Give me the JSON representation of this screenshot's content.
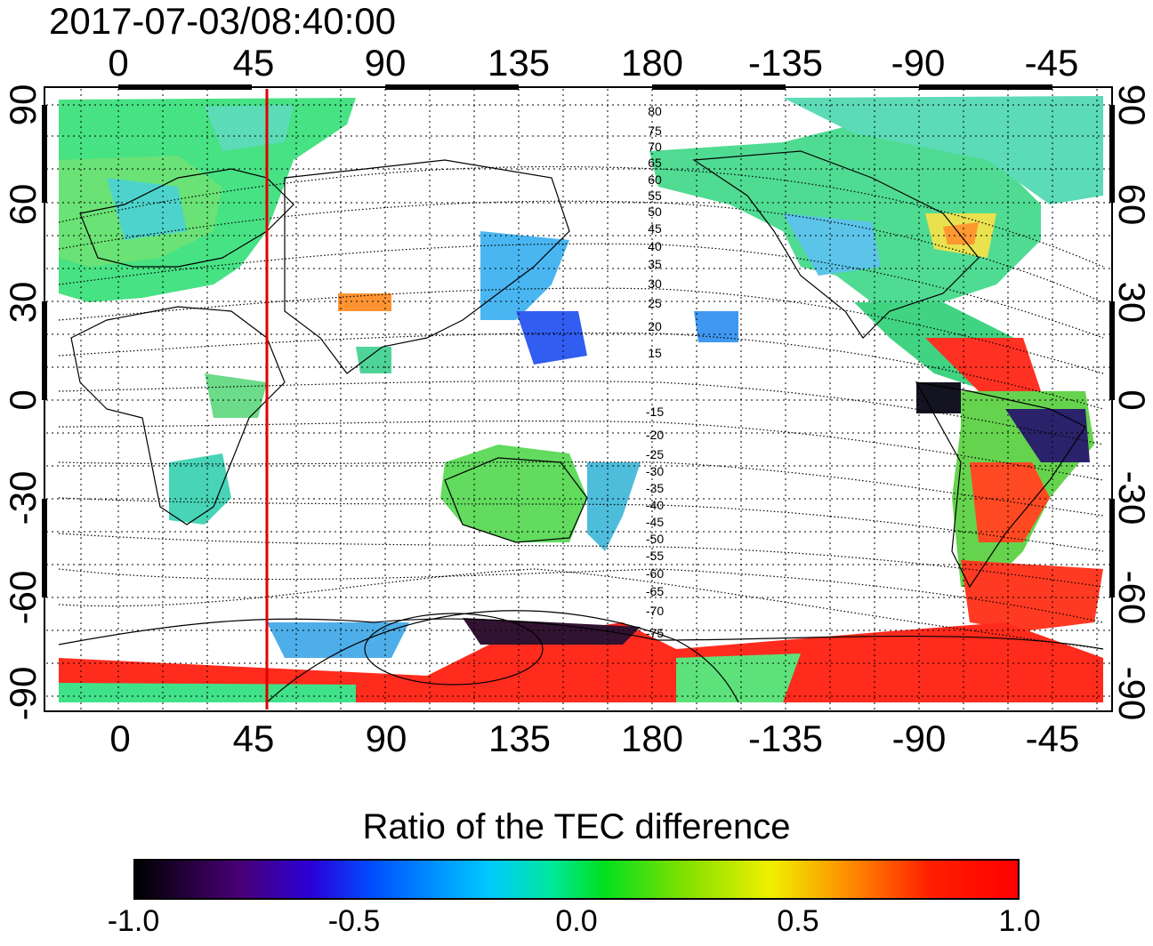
{
  "timestamp": "2017-07-03/08:40:00",
  "axes": {
    "lon_ticks": [
      "0",
      "45",
      "90",
      "135",
      "180",
      "-135",
      "-90",
      "-45"
    ],
    "lat_ticks": [
      "90",
      "60",
      "30",
      "0",
      "-30",
      "-60",
      "-90"
    ]
  },
  "meridian_marker": {
    "longitude": 50,
    "color": "#e00000"
  },
  "mlat_labels_north": [
    "80",
    "75",
    "70",
    "65",
    "60",
    "55",
    "50",
    "45",
    "40",
    "35",
    "30",
    "25",
    "20",
    "15"
  ],
  "mlat_labels_south": [
    "-15",
    "-20",
    "-25",
    "-30",
    "-35",
    "-40",
    "-45",
    "-50",
    "-55",
    "-60",
    "-65",
    "-70",
    "-75"
  ],
  "colorbar": {
    "title": "Ratio of the TEC difference",
    "tick_labels": [
      "-1.0",
      "-0.5",
      "0.0",
      "0.5",
      "1.0"
    ],
    "range": [
      -1.0,
      1.0
    ]
  },
  "colors": {
    "low": "#000000",
    "zero": "#00e060",
    "high": "#ff0000"
  }
}
